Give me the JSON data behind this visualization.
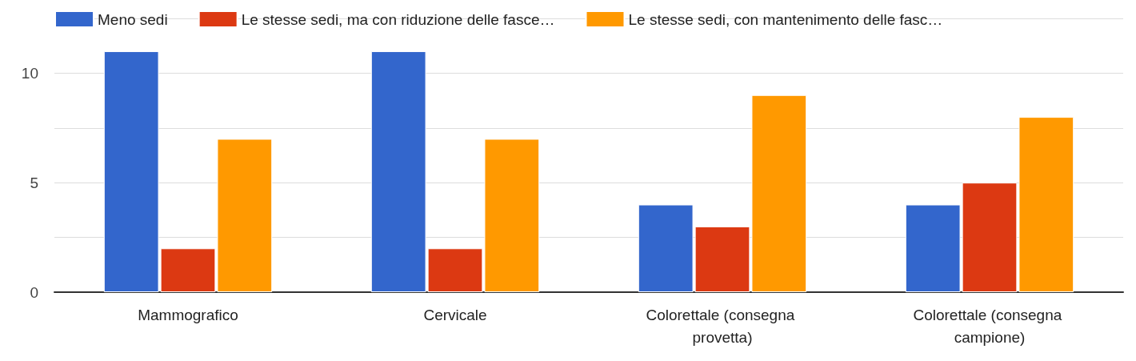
{
  "chart_data": {
    "type": "bar",
    "categories": [
      "Mammografico",
      "Cervicale",
      "Colorettale (consegna provetta)",
      "Colorettale (consegna campione)"
    ],
    "series": [
      {
        "name": "Meno sedi",
        "color": "#3366cc",
        "values": [
          11,
          11,
          4,
          4
        ]
      },
      {
        "name": "Le stesse sedi, ma con riduzione delle fasce…",
        "color": "#dc3912",
        "values": [
          2,
          2,
          3,
          5
        ]
      },
      {
        "name": "Le stesse sedi, con mantenimento delle fasc…",
        "color": "#ff9900",
        "values": [
          7,
          7,
          9,
          8
        ]
      }
    ],
    "ylim": [
      0,
      12.5
    ],
    "yticks": [
      0,
      {
        "value": 2.5,
        "label": null
      },
      5,
      {
        "value": 7.5,
        "label": null
      },
      10,
      {
        "value": 12.5,
        "label": null
      }
    ],
    "grid": "y",
    "legend": "top left"
  }
}
